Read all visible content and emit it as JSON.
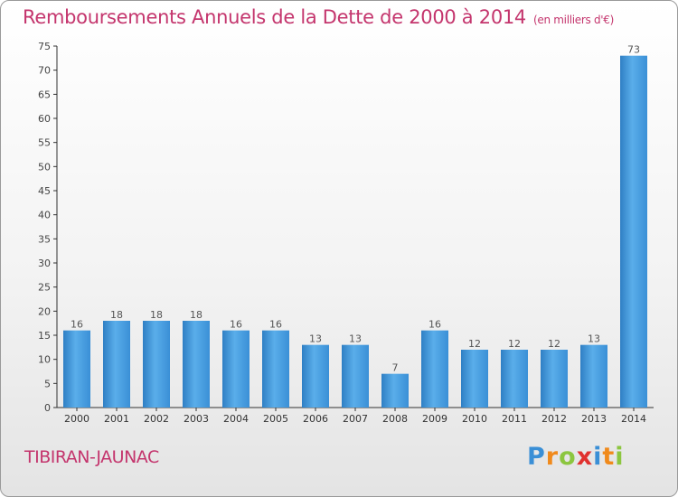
{
  "header": {
    "title": "Remboursements Annuels de la Dette de 2000 à 2014",
    "subtitle": "(en milliers d'€)"
  },
  "footer": {
    "commune": "TIBIRAN-JAUNAC",
    "logo_letters": [
      "P",
      "r",
      "o",
      "x",
      "i",
      "t",
      "i"
    ],
    "logo_colors": [
      "#3a8fd6",
      "#f08a1c",
      "#8cc63f",
      "#e0312f",
      "#3a8fd6",
      "#f08a1c",
      "#8cc63f"
    ]
  },
  "chart_data": {
    "type": "bar",
    "title": "Remboursements Annuels de la Dette de 2000 à 2014",
    "subtitle": "(en milliers d'€)",
    "categories": [
      "2000",
      "2001",
      "2002",
      "2003",
      "2004",
      "2005",
      "2006",
      "2007",
      "2008",
      "2009",
      "2010",
      "2011",
      "2012",
      "2013",
      "2014"
    ],
    "values": [
      16,
      18,
      18,
      18,
      16,
      16,
      13,
      13,
      7,
      16,
      12,
      12,
      12,
      13,
      73
    ],
    "ylim": [
      0,
      75
    ],
    "yticks": [
      0,
      5,
      10,
      15,
      20,
      25,
      30,
      35,
      40,
      45,
      50,
      55,
      60,
      65,
      70,
      75
    ],
    "grid": false,
    "bar_color": "#3d8fd6",
    "label_color": "#555555"
  }
}
